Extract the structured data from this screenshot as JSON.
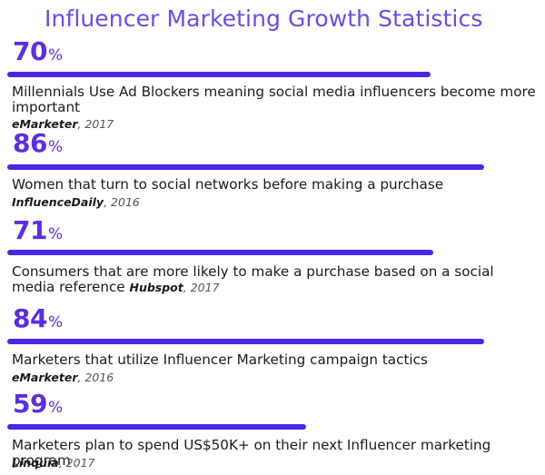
{
  "colors": {
    "accent": "#5a2ee6",
    "bar": "#4b25e8",
    "title": "#6c4bea",
    "text": "#1b1b1b"
  },
  "title": "Influencer Marketing Growth Statistics",
  "chart_data": {
    "type": "bar",
    "title": "Influencer Marketing Growth Statistics",
    "unit": "%",
    "categories": [
      "Millennials Use Ad Blockers meaning social media influencers become more important",
      "Women that turn to social networks before making a purchase",
      "Consumers that are more likely to make a purchase based on a social media reference",
      "Marketers that utilize Influencer Marketing campaign tactics",
      "Marketers plan to spend US$50K+ on their next Influencer marketing program"
    ],
    "values": [
      70,
      86,
      71,
      84,
      59
    ],
    "xlim": [
      0,
      100
    ]
  },
  "stats": [
    {
      "value": "70",
      "unit": "%",
      "text": "Millennials Use Ad Blockers meaning social media influencers become more important",
      "source": "eMarketer",
      "year": ", 2017",
      "fill": 0.8
    },
    {
      "value": "86",
      "unit": "%",
      "text": "Women that turn to social networks before making a purchase",
      "source": "InfluenceDaily",
      "year": ", 2016",
      "fill": 0.9
    },
    {
      "value": "71",
      "unit": "%",
      "text": "Consumers that are more likely to make a purchase based on a social media reference",
      "source": "Hubspot",
      "year": ", 2017",
      "fill": 0.805
    },
    {
      "value": "84",
      "unit": "%",
      "text": "Marketers that utilize Influencer Marketing campaign tactics",
      "source": "eMarketer",
      "year": ", 2016",
      "fill": 0.9
    },
    {
      "value": "59",
      "unit": "%",
      "text": "Marketers plan to spend US$50K+ on their next Influencer marketing program",
      "source": "Linquia",
      "year": ", 2017",
      "fill": 0.565
    }
  ]
}
